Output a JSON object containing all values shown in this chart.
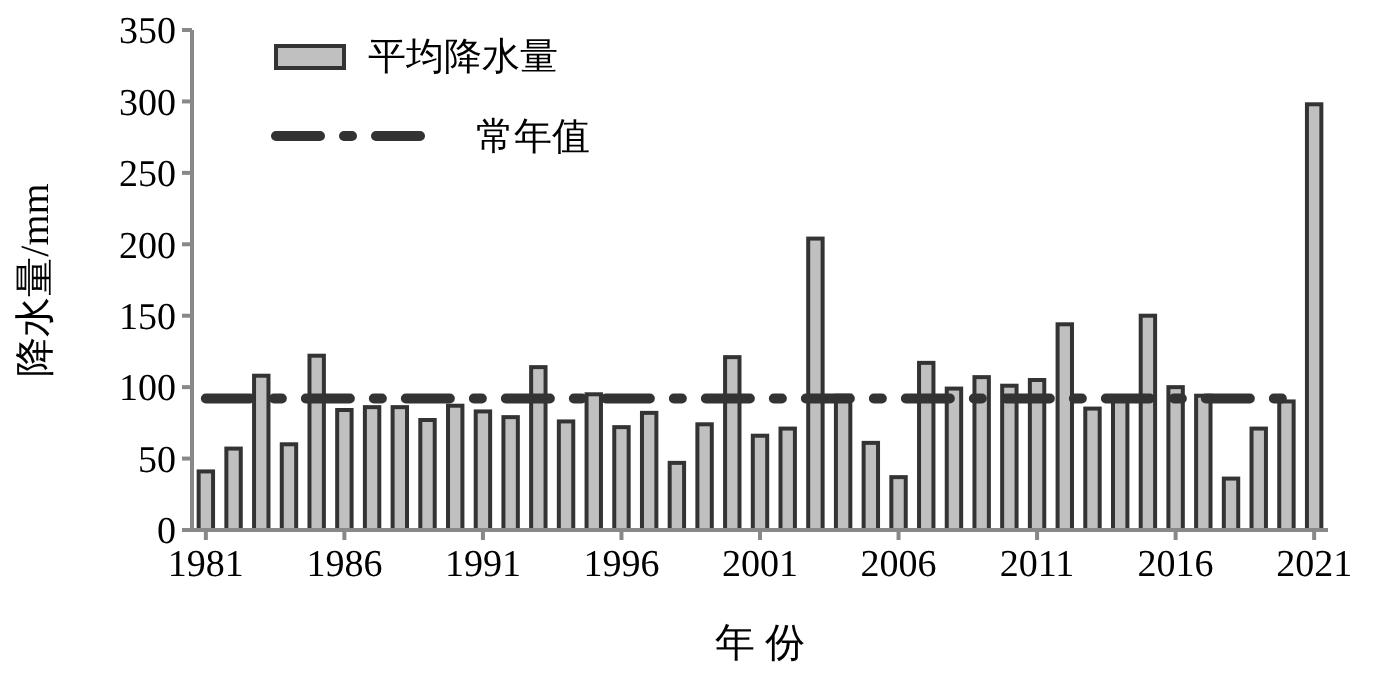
{
  "chart_data": {
    "type": "bar",
    "xlabel": "年 份",
    "ylabel": "降水量/mm",
    "categories": [
      "1981",
      null,
      null,
      null,
      null,
      "1986",
      null,
      null,
      null,
      null,
      "1991",
      null,
      null,
      null,
      null,
      "1996",
      null,
      null,
      null,
      null,
      "2001",
      null,
      null,
      null,
      null,
      "2006",
      null,
      null,
      null,
      null,
      "2011",
      null,
      null,
      null,
      null,
      "2016",
      null,
      null,
      null,
      null,
      "2021"
    ],
    "series": [
      {
        "name": "平均降水量",
        "color": "#c0c0c0",
        "values": [
          41,
          57,
          108,
          60,
          122,
          84,
          86,
          86,
          77,
          87,
          83,
          79,
          114,
          76,
          95,
          72,
          82,
          47,
          74,
          121,
          66,
          71,
          204,
          94,
          61,
          37,
          117,
          99,
          107,
          101,
          105,
          144,
          85,
          93,
          150,
          100,
          94,
          36,
          71,
          90,
          298
        ]
      },
      {
        "name": "常年值",
        "type": "line",
        "color": "#333333",
        "line_style": "dashed",
        "values": [
          92,
          92,
          92,
          92,
          92,
          92,
          92,
          92,
          92,
          92,
          92,
          92,
          92,
          92,
          92,
          92,
          92,
          92,
          92,
          92,
          92,
          92,
          92,
          92,
          92,
          92,
          92,
          92,
          92,
          92,
          92,
          92,
          92,
          92,
          92,
          92,
          92,
          92,
          92,
          92,
          null
        ]
      }
    ],
    "ylim": [
      0,
      350
    ],
    "yticks": [
      0,
      50,
      100,
      150,
      200,
      250,
      300,
      350
    ],
    "grid": false,
    "legend": "top left"
  }
}
